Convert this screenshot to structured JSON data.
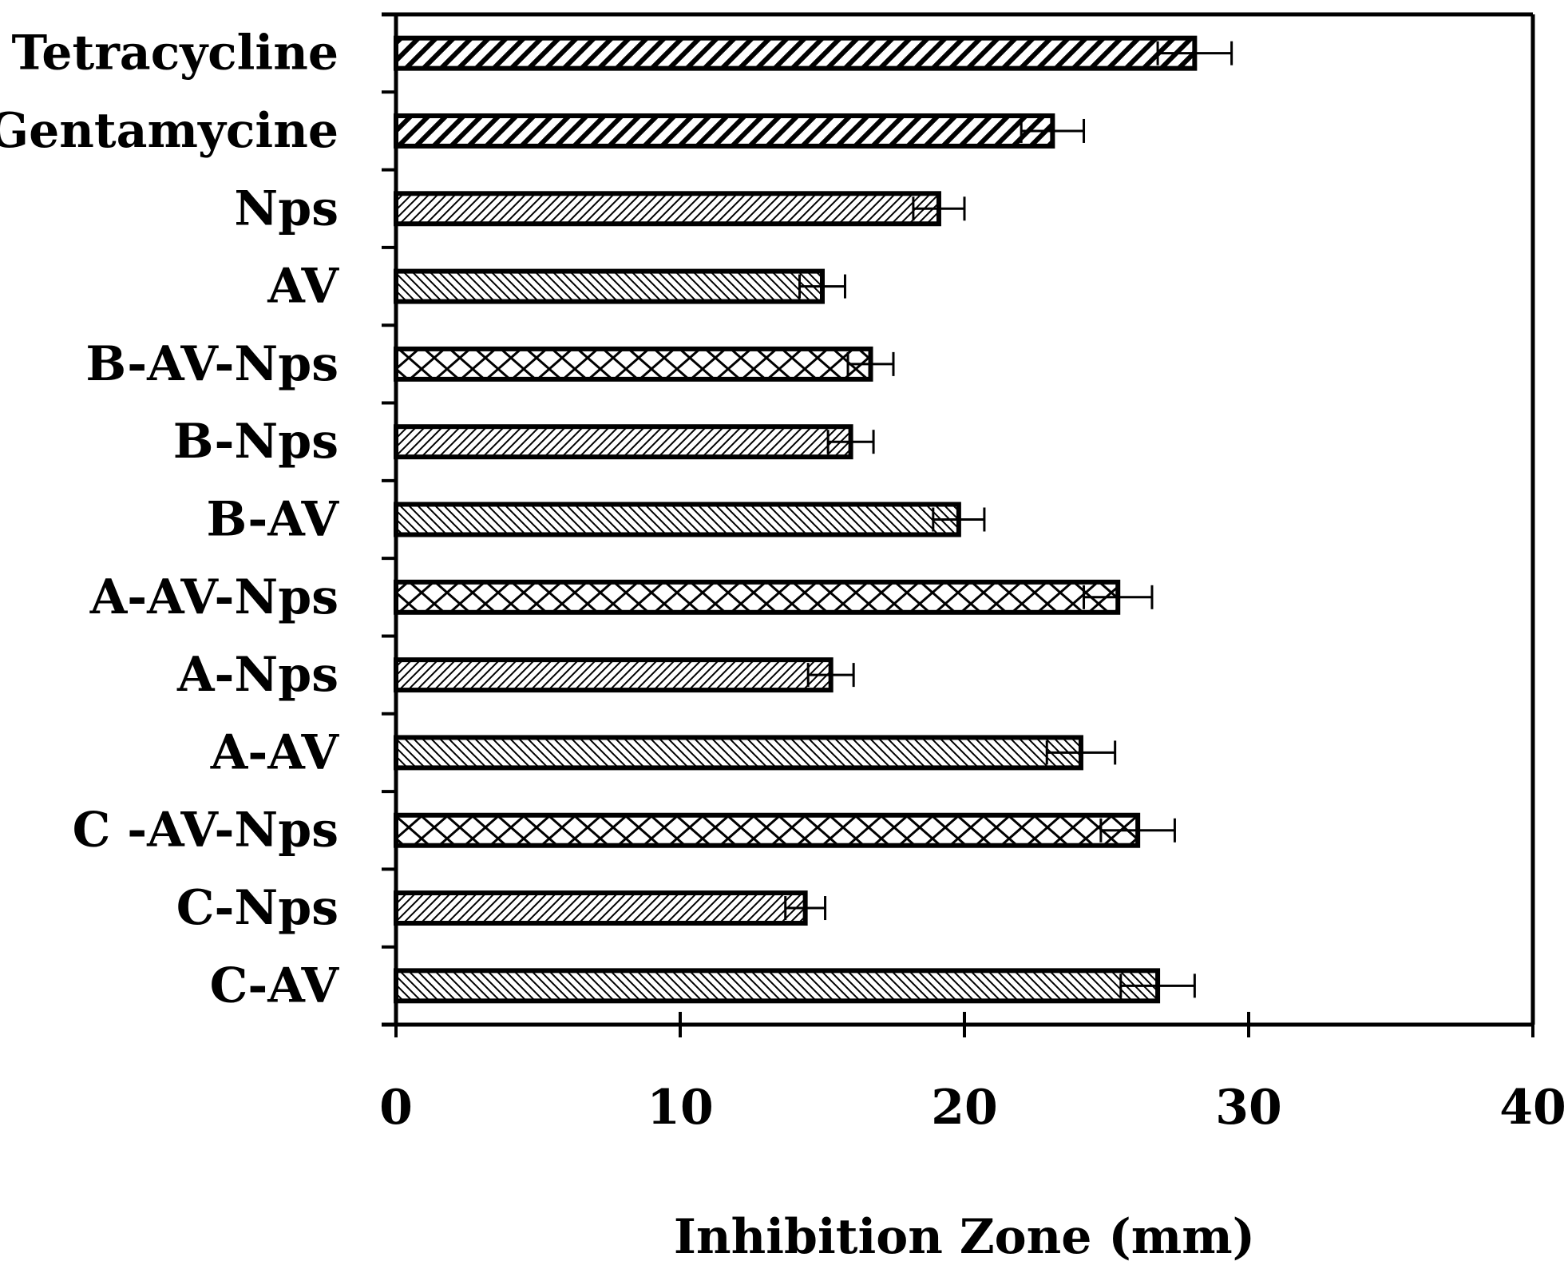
{
  "chart_data": {
    "type": "bar",
    "orientation": "horizontal",
    "title": "",
    "xlabel": "Inhibition Zone (mm)",
    "ylabel": "",
    "xlim": [
      0,
      40
    ],
    "xticks": [
      "0",
      "10",
      "20",
      "30",
      "40"
    ],
    "grid": false,
    "categories": [
      "Tetracycline",
      "Gentamycine",
      "Nps",
      "AV",
      "B-AV-Nps",
      "B-Nps",
      "B-AV",
      "A-AV-Nps",
      "A-Nps",
      "A-AV",
      "C -AV-Nps",
      "C-Nps",
      "C-AV"
    ],
    "values": [
      28.1,
      23.1,
      19.1,
      15.0,
      16.7,
      16.0,
      19.8,
      25.4,
      15.3,
      24.1,
      26.1,
      14.4,
      26.8
    ],
    "errors": [
      1.3,
      1.1,
      0.9,
      0.8,
      0.8,
      0.8,
      0.9,
      1.2,
      0.8,
      1.2,
      1.3,
      0.7,
      1.3
    ],
    "patterns": [
      "heavy-diagonal",
      "heavy-diagonal",
      "light-diagonal",
      "back-diagonal",
      "cross",
      "light-diagonal",
      "back-diagonal",
      "cross",
      "light-diagonal",
      "back-diagonal",
      "cross",
      "light-diagonal",
      "back-diagonal"
    ]
  }
}
